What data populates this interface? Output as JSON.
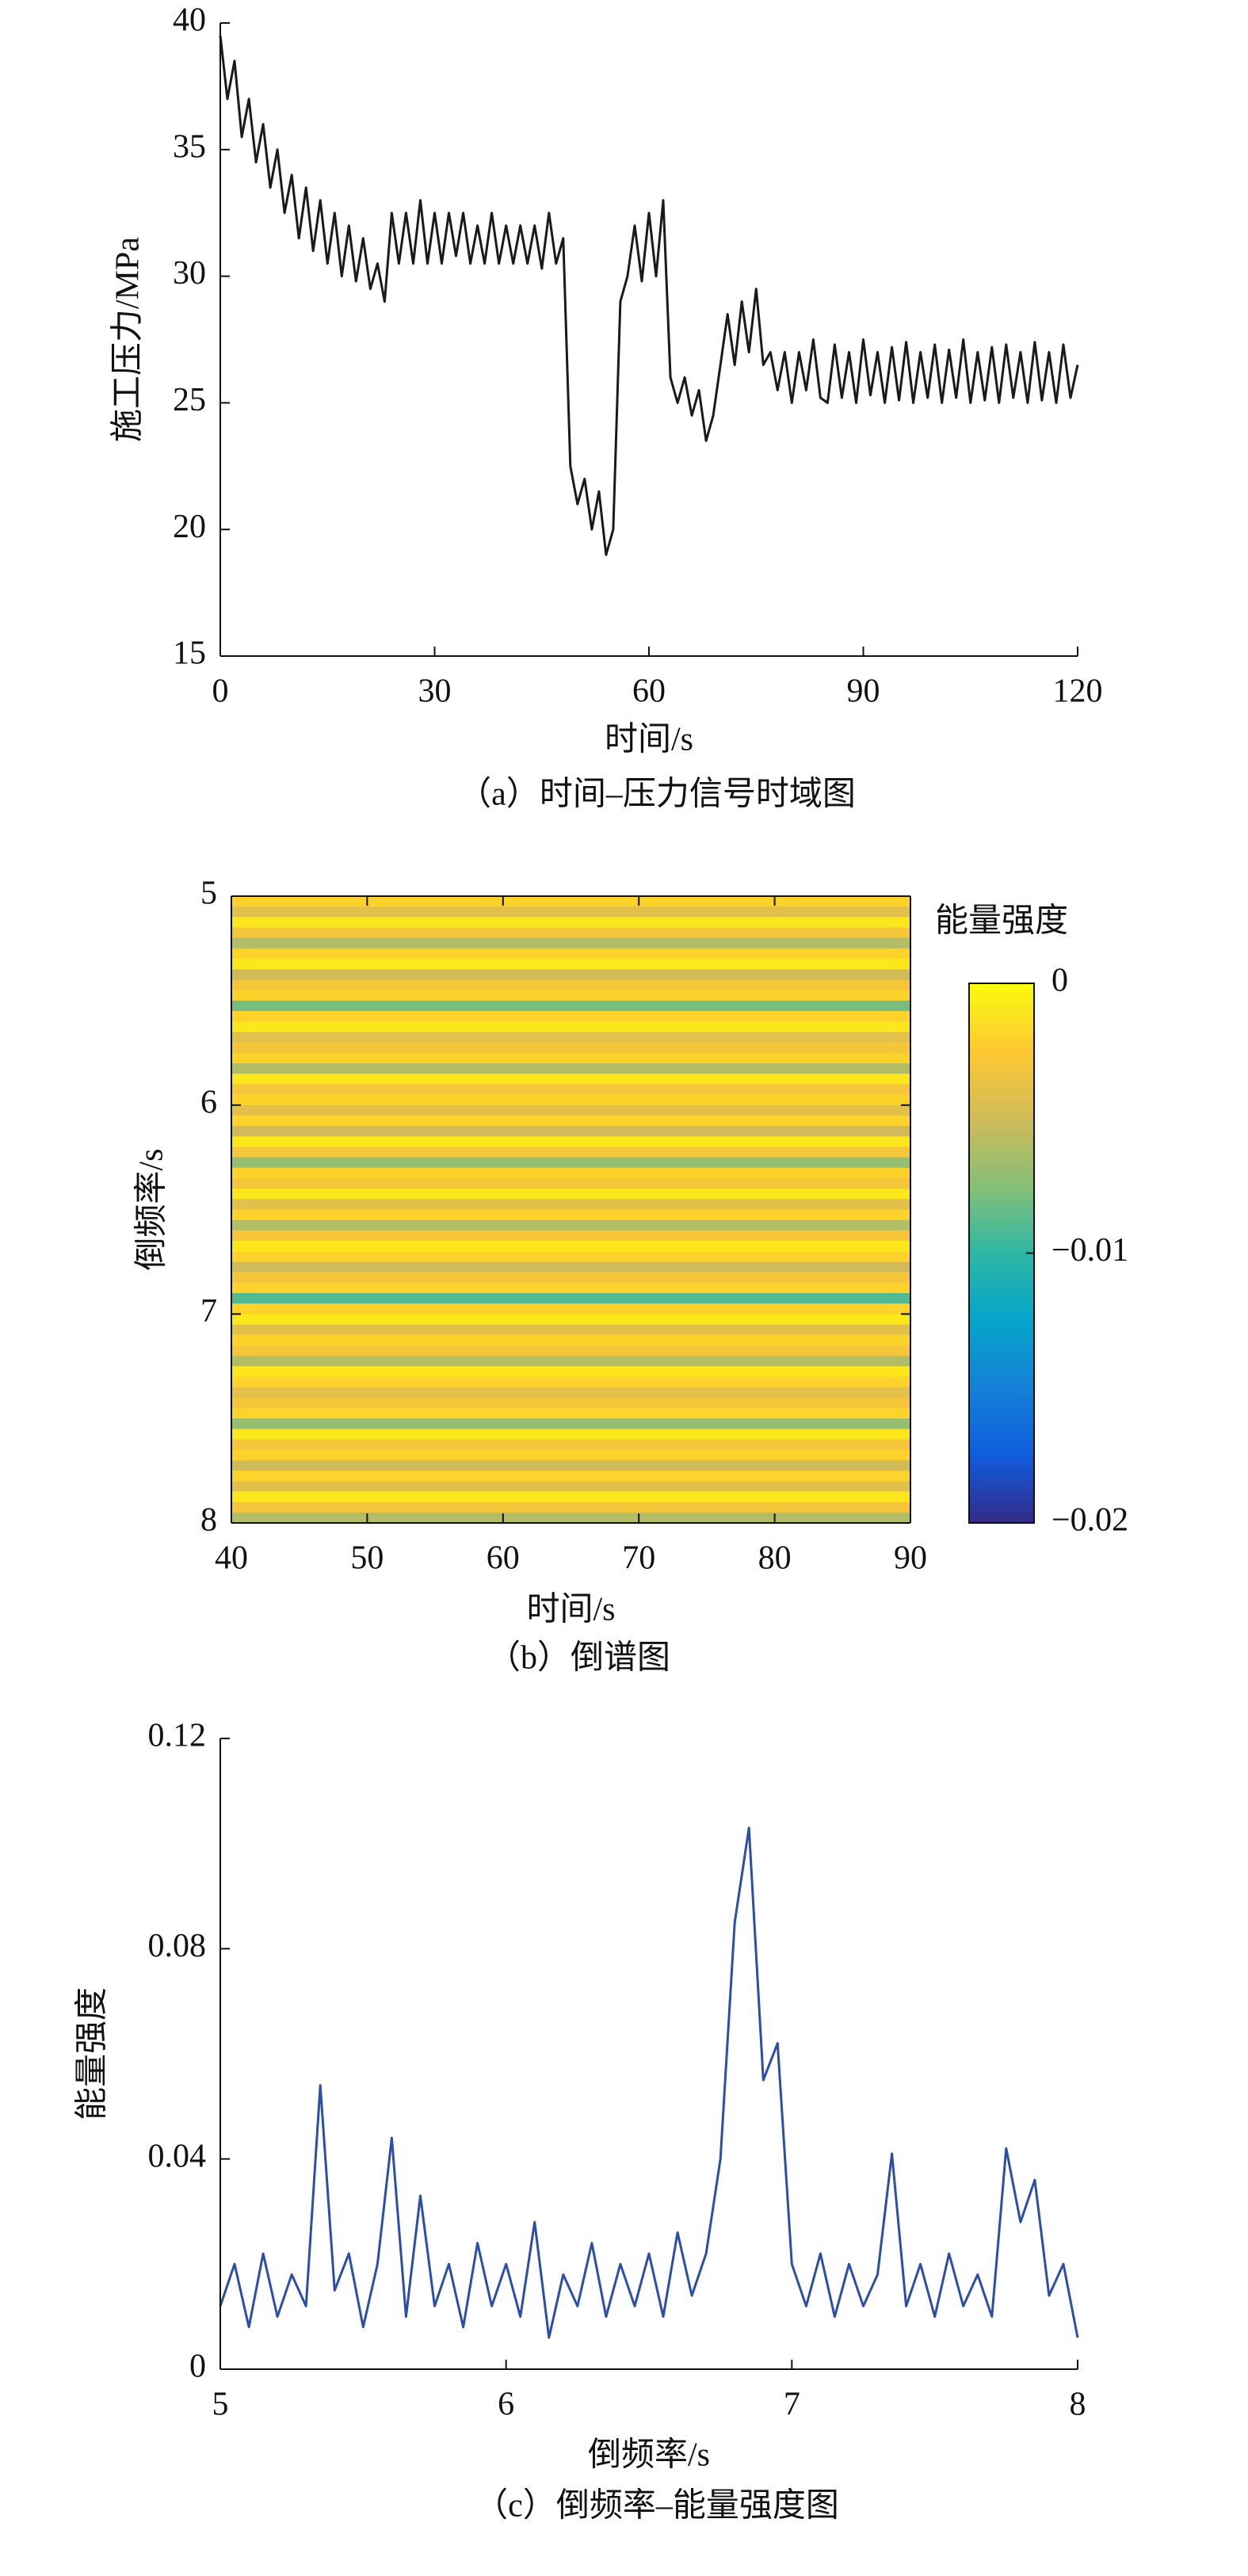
{
  "chart_data": [
    {
      "type": "line",
      "title": "（a）时间–压力信号时域图",
      "xlabel": "时间/s",
      "ylabel": "施工压力/MPa",
      "color": "#1a1a1a",
      "x": [
        0,
        1,
        2,
        3,
        4,
        5,
        6,
        7,
        8,
        9,
        10,
        11,
        12,
        13,
        14,
        15,
        16,
        17,
        18,
        19,
        20,
        21,
        22,
        23,
        24,
        25,
        26,
        27,
        28,
        29,
        30,
        31,
        32,
        33,
        34,
        35,
        36,
        37,
        38,
        39,
        40,
        41,
        42,
        43,
        44,
        45,
        46,
        47,
        48,
        49,
        50,
        51,
        52,
        53,
        54,
        55,
        56,
        57,
        58,
        59,
        60,
        61,
        62,
        63,
        64,
        65,
        66,
        67,
        68,
        69,
        70,
        71,
        72,
        73,
        74,
        75,
        76,
        77,
        78,
        79,
        80,
        81,
        82,
        83,
        84,
        85,
        86,
        87,
        88,
        89,
        90,
        91,
        92,
        93,
        94,
        95,
        96,
        97,
        98,
        99,
        100,
        101,
        102,
        103,
        104,
        105,
        106,
        107,
        108,
        109,
        110,
        111,
        112,
        113,
        114,
        115,
        116,
        117,
        118,
        119,
        120
      ],
      "values": [
        39.5,
        37,
        38.5,
        35.5,
        37,
        34.5,
        36,
        33.5,
        35,
        32.5,
        34,
        31.5,
        33.5,
        31,
        33,
        30.5,
        32.5,
        30,
        32,
        29.8,
        31.5,
        29.5,
        30.5,
        29,
        32.5,
        30.5,
        32.5,
        30.5,
        33,
        30.5,
        32.5,
        30.5,
        32.5,
        30.8,
        32.5,
        30.5,
        32,
        30.5,
        32.5,
        30.5,
        32,
        30.5,
        32,
        30.5,
        32,
        30.3,
        32.5,
        30.5,
        31.5,
        22.5,
        21,
        22,
        20,
        21.5,
        19,
        20,
        29,
        30,
        32,
        29.8,
        32.5,
        30,
        33,
        26,
        25,
        26,
        24.5,
        25.5,
        23.5,
        24.5,
        26.5,
        28.5,
        26.5,
        29,
        27,
        29.5,
        26.5,
        27,
        25.5,
        27,
        25,
        27,
        25.5,
        27.5,
        25.2,
        25,
        27.3,
        25.2,
        27,
        25,
        27.5,
        25.3,
        27,
        25,
        27.2,
        25.1,
        27.4,
        25,
        27,
        25.2,
        27.3,
        25,
        27.1,
        25.2,
        27.5,
        25,
        27,
        25.1,
        27.2,
        25,
        27.3,
        25.2,
        27,
        25,
        27.4,
        25.1,
        27,
        25,
        27.3,
        25.2,
        26.5
      ],
      "xlim": [
        0,
        120
      ],
      "xticks": [
        0,
        30,
        60,
        90,
        120
      ],
      "ylim": [
        15,
        40
      ],
      "yticks": [
        15,
        20,
        25,
        30,
        35,
        40
      ]
    },
    {
      "type": "heatmap",
      "title": "（b）倒谱图",
      "xlabel": "时间/s",
      "ylabel": "倒频率/s",
      "colorbar_title": "能量强度",
      "xlim": [
        40,
        90
      ],
      "xticks": [
        40,
        50,
        60,
        70,
        80,
        90
      ],
      "ylim": [
        5,
        8
      ],
      "yticks": [
        5,
        6,
        7,
        8
      ],
      "y_inverted": true,
      "ybins": [
        5,
        5.05,
        5.1,
        5.15,
        5.2,
        5.25,
        5.3,
        5.35,
        5.4,
        5.45,
        5.5,
        5.55,
        5.6,
        5.65,
        5.7,
        5.75,
        5.8,
        5.85,
        5.9,
        5.95,
        6,
        6.05,
        6.1,
        6.15,
        6.2,
        6.25,
        6.3,
        6.35,
        6.4,
        6.45,
        6.5,
        6.55,
        6.6,
        6.65,
        6.7,
        6.75,
        6.8,
        6.85,
        6.9,
        6.95,
        7,
        7.05,
        7.1,
        7.15,
        7.2,
        7.25,
        7.3,
        7.35,
        7.4,
        7.45,
        7.5,
        7.55,
        7.6,
        7.65,
        7.7,
        7.75,
        7.8,
        7.85,
        7.9,
        7.95,
        8
      ],
      "values": [
        -0.002,
        -0.004,
        -0.001,
        -0.003,
        -0.006,
        -0.002,
        -0.001,
        -0.005,
        -0.003,
        -0.002,
        -0.008,
        -0.002,
        -0.001,
        -0.004,
        -0.003,
        -0.002,
        -0.006,
        -0.001,
        -0.003,
        -0.002,
        -0.004,
        -0.002,
        -0.005,
        -0.001,
        -0.003,
        -0.007,
        -0.002,
        -0.003,
        -0.001,
        -0.004,
        -0.002,
        -0.006,
        -0.003,
        -0.001,
        -0.002,
        -0.005,
        -0.003,
        -0.002,
        -0.009,
        -0.002,
        -0.001,
        -0.004,
        -0.002,
        -0.003,
        -0.006,
        -0.001,
        -0.002,
        -0.004,
        -0.003,
        -0.002,
        -0.007,
        -0.001,
        -0.003,
        -0.002,
        -0.005,
        -0.002,
        -0.004,
        -0.001,
        -0.003,
        -0.006
      ],
      "clim": [
        -0.02,
        0
      ],
      "cticks": [
        0,
        {
          "value": -0.01,
          "label": "−0.01"
        },
        {
          "value": -0.02,
          "label": "−0.02"
        }
      ],
      "colormap": [
        "#352a87",
        "#0f5cdd",
        "#1481d6",
        "#06a4ca",
        "#2eb7a4",
        "#87bf77",
        "#d1bb59",
        "#fec832",
        "#f9fb0e"
      ]
    },
    {
      "type": "line",
      "title": "（c）倒频率–能量强度图",
      "xlabel": "倒频率/s",
      "ylabel": "能量强度",
      "color": "#2b4ea8",
      "x": [
        5,
        5.05,
        5.1,
        5.15,
        5.2,
        5.25,
        5.3,
        5.35,
        5.4,
        5.45,
        5.5,
        5.55,
        5.6,
        5.65,
        5.7,
        5.75,
        5.8,
        5.85,
        5.9,
        5.95,
        6,
        6.05,
        6.1,
        6.15,
        6.2,
        6.25,
        6.3,
        6.35,
        6.4,
        6.45,
        6.5,
        6.55,
        6.6,
        6.65,
        6.7,
        6.75,
        6.8,
        6.85,
        6.9,
        6.95,
        7,
        7.05,
        7.1,
        7.15,
        7.2,
        7.25,
        7.3,
        7.35,
        7.4,
        7.45,
        7.5,
        7.55,
        7.6,
        7.65,
        7.7,
        7.75,
        7.8,
        7.85,
        7.9,
        7.95,
        8
      ],
      "values": [
        0.012,
        0.02,
        0.008,
        0.022,
        0.01,
        0.018,
        0.012,
        0.054,
        0.015,
        0.022,
        0.008,
        0.02,
        0.044,
        0.01,
        0.033,
        0.012,
        0.02,
        0.008,
        0.024,
        0.012,
        0.02,
        0.01,
        0.028,
        0.006,
        0.018,
        0.012,
        0.024,
        0.01,
        0.02,
        0.012,
        0.022,
        0.01,
        0.026,
        0.014,
        0.022,
        0.04,
        0.085,
        0.103,
        0.055,
        0.062,
        0.02,
        0.012,
        0.022,
        0.01,
        0.02,
        0.012,
        0.018,
        0.041,
        0.012,
        0.02,
        0.01,
        0.022,
        0.012,
        0.018,
        0.01,
        0.042,
        0.028,
        0.036,
        0.014,
        0.02,
        0.006
      ],
      "xlim": [
        5,
        8
      ],
      "xticks": [
        5,
        6,
        7,
        8
      ],
      "ylim": [
        0,
        0.12
      ],
      "yticks": [
        0,
        0.04,
        0.08,
        0.12
      ]
    }
  ]
}
